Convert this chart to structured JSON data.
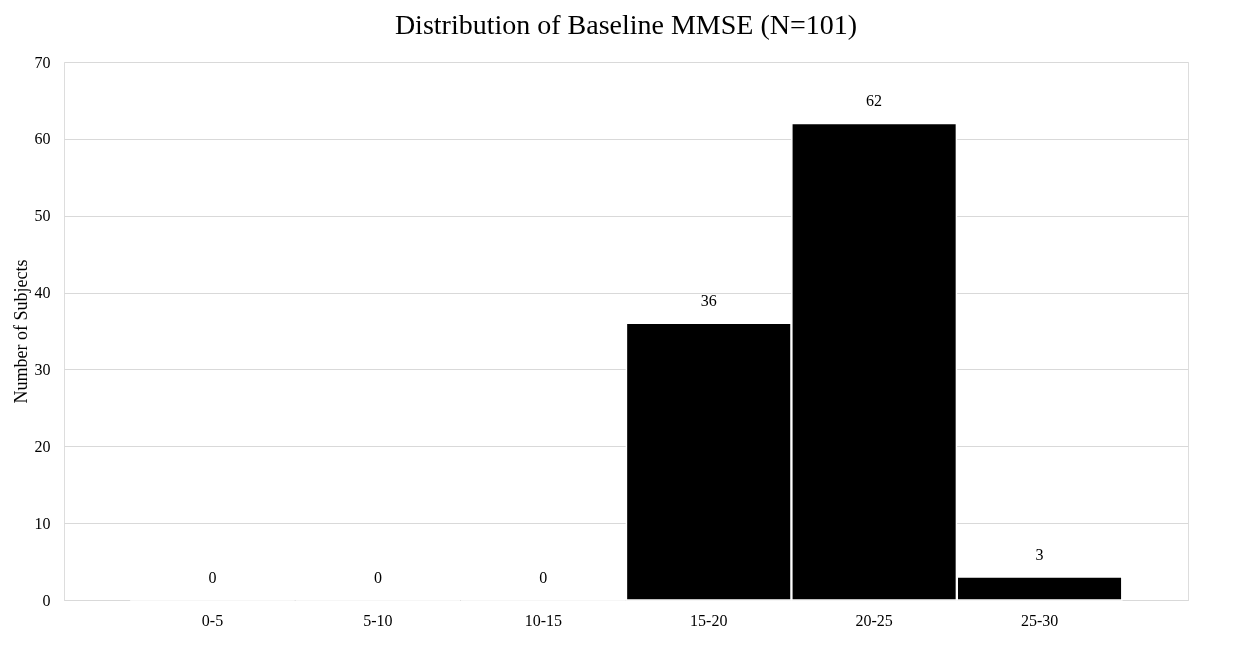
{
  "chart_data": {
    "type": "bar",
    "title": "Distribution of Baseline MMSE (N=101)",
    "ylabel": "Number of Subjects",
    "categories": [
      "0-5",
      "5-10",
      "10-15",
      "15-20",
      "20-25",
      "25-30"
    ],
    "values": [
      0,
      0,
      0,
      36,
      62,
      3
    ],
    "color": "#000000",
    "ylim": [
      0,
      70
    ],
    "yticks": [
      0,
      10,
      20,
      30,
      40,
      50,
      60,
      70
    ],
    "grid": "y",
    "data_labels": true
  }
}
